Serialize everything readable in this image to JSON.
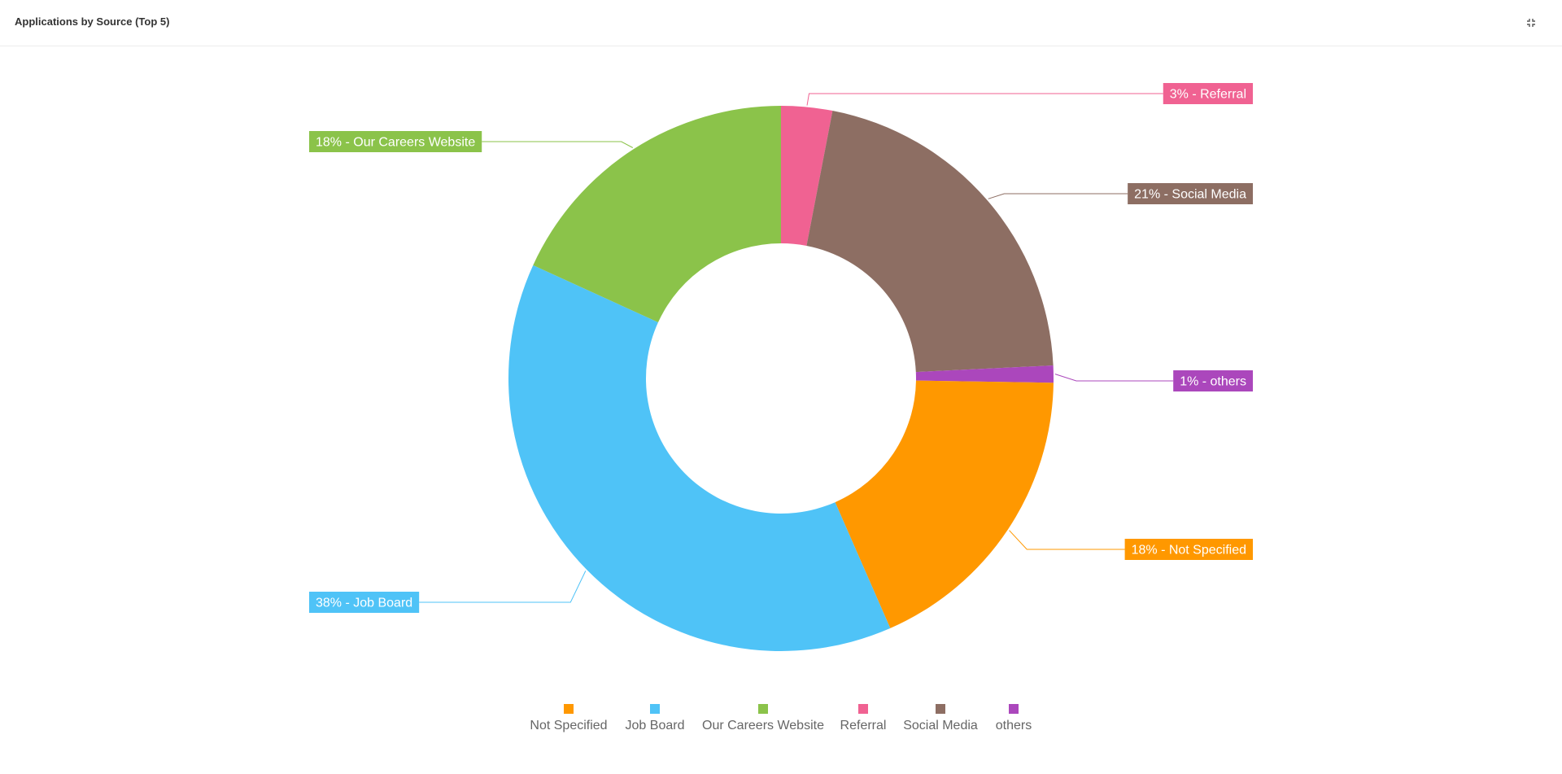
{
  "header": {
    "title": "Applications by Source (Top 5)",
    "collapse_icon": "collapse-icon"
  },
  "chart_data": {
    "type": "pie",
    "variant": "donut",
    "legend_position": "bottom",
    "slices": [
      {
        "name": "Not Specified",
        "value": 18,
        "label": "18% - Not Specified",
        "color": "#ff9800"
      },
      {
        "name": "Job Board",
        "value": 38,
        "label": "38% - Job Board",
        "color": "#4fc3f7"
      },
      {
        "name": "Our Careers Website",
        "value": 18,
        "label": "18% - Our Careers Website",
        "color": "#8bc34a"
      },
      {
        "name": "Referral",
        "value": 3,
        "label": "3% - Referral",
        "color": "#f06292"
      },
      {
        "name": "Social Media",
        "value": 21,
        "label": "21% - Social Media",
        "color": "#8d6e63"
      },
      {
        "name": "others",
        "value": 1,
        "label": "1% - others",
        "color": "#ab47bc"
      }
    ]
  }
}
